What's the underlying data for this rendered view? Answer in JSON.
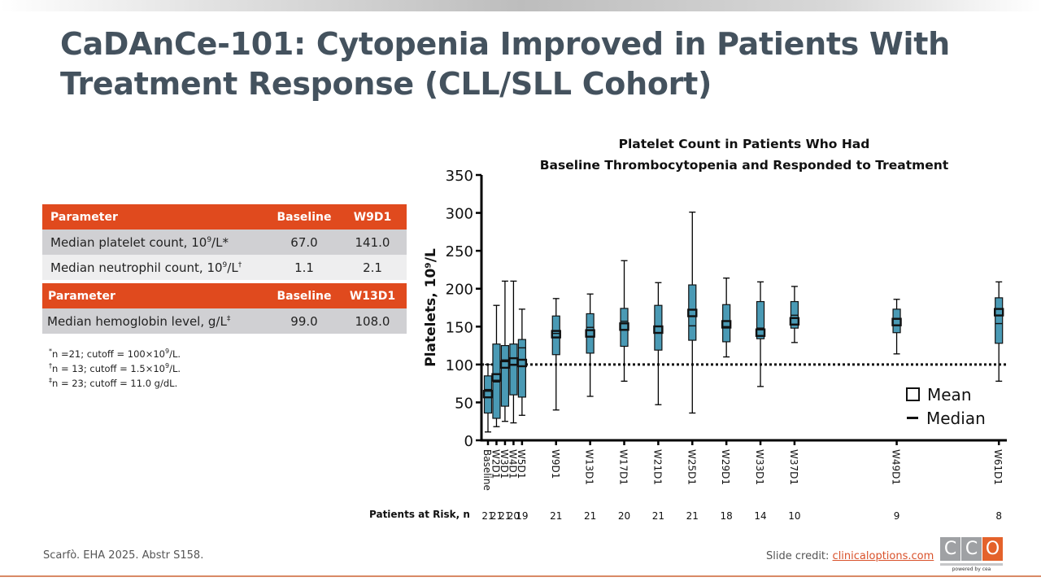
{
  "slide": {
    "title_lines": [
      "CaDAnCe-101: Cytopenia Improved in Patients With",
      "Treatment Response (CLL/SLL Cohort)"
    ],
    "source": "Scarfò. EHA 2025. Abstr S158.",
    "credit_label": "Slide credit: ",
    "credit_link": "clinicaloptions.com",
    "logo": {
      "letters": [
        "C",
        "C",
        "O"
      ],
      "tagline": "powered by cea"
    },
    "colors": {
      "title": "#44525e",
      "accent": "#e04a1e",
      "box_fill": "#4a9ab5",
      "rule": "#d98a66"
    }
  },
  "table": {
    "section1": {
      "headers": [
        "Parameter",
        "Baseline",
        "W9D1"
      ],
      "rows": [
        {
          "label": "Median platelet count, 10",
          "sup1": "9",
          "label_rest": "/L*",
          "sup2": "",
          "baseline": "67.0",
          "followup": "141.0"
        },
        {
          "label": "Median neutrophil count, 10",
          "sup1": "9",
          "label_rest": "/L",
          "sup2": "†",
          "baseline": "1.1",
          "followup": "2.1"
        }
      ]
    },
    "section2": {
      "headers": [
        "Parameter",
        "Baseline",
        "W13D1"
      ],
      "rows": [
        {
          "label": "Median hemoglobin level, g/L",
          "sup2": "‡",
          "baseline": "99.0",
          "followup": "108.0"
        }
      ]
    },
    "footnotes": [
      {
        "mark": "*",
        "text_a": "n =21; cutoff = 100×10",
        "sup": "9",
        "text_b": "/L."
      },
      {
        "mark": "†",
        "text_a": "n = 13; cutoff = 1.5×10",
        "sup": "9",
        "text_b": "/L."
      },
      {
        "mark": "‡",
        "text_a": "n = 23; cutoff = 11.0 g/dL.",
        "sup": "",
        "text_b": ""
      }
    ]
  },
  "chart_data": {
    "type": "boxplot",
    "title_lines": [
      "Platelet Count in Patients Who Had",
      "Baseline Thrombocytopenia and Responded to Treatment"
    ],
    "ylabel": "Platelets, 10⁹/L",
    "ylim": [
      0,
      350
    ],
    "yticks": [
      0,
      50,
      100,
      150,
      200,
      250,
      300,
      350
    ],
    "reference_line": 100,
    "legend": {
      "mean": "Mean",
      "median": "Median",
      "position": "bottom-right"
    },
    "risk_label": "Patients at Risk, n",
    "categories": [
      {
        "label": "Baseline",
        "week": 1,
        "min": 11,
        "q1": 36,
        "median": 67,
        "mean": 61,
        "q3": 85,
        "max": 100,
        "n": "21"
      },
      {
        "label": "W2D1",
        "week": 2,
        "min": 18,
        "q1": 29,
        "median": 77,
        "mean": 83,
        "q3": 127,
        "max": 178,
        "n": "21"
      },
      {
        "label": "W3D1",
        "week": 3,
        "min": 25,
        "q1": 45,
        "median": 106,
        "mean": 100,
        "q3": 125,
        "max": 210,
        "n": "21"
      },
      {
        "label": "W4D1",
        "week": 4,
        "min": 23,
        "q1": 60,
        "median": 99,
        "mean": 104,
        "q3": 127,
        "max": 210,
        "n": "20"
      },
      {
        "label": "W5D1",
        "week": 5,
        "min": 33,
        "q1": 57,
        "median": 122,
        "mean": 102,
        "q3": 133,
        "max": 173,
        "n": "19"
      },
      {
        "label": "W9D1",
        "week": 9,
        "min": 40,
        "q1": 113,
        "median": 141,
        "mean": 140,
        "q3": 164,
        "max": 187,
        "n": "21"
      },
      {
        "label": "W13D1",
        "week": 13,
        "min": 58,
        "q1": 115,
        "median": 149,
        "mean": 141,
        "q3": 167,
        "max": 193,
        "n": "21"
      },
      {
        "label": "W17D1",
        "week": 17,
        "min": 78,
        "q1": 124,
        "median": 157,
        "mean": 150,
        "q3": 174,
        "max": 237,
        "n": "20"
      },
      {
        "label": "W21D1",
        "week": 21,
        "min": 47,
        "q1": 119,
        "median": 142,
        "mean": 146,
        "q3": 178,
        "max": 208,
        "n": "21"
      },
      {
        "label": "W25D1",
        "week": 25,
        "min": 36,
        "q1": 132,
        "median": 151,
        "mean": 168,
        "q3": 205,
        "max": 301,
        "n": "21"
      },
      {
        "label": "W29D1",
        "week": 29,
        "min": 110,
        "q1": 130,
        "median": 150,
        "mean": 153,
        "q3": 179,
        "max": 214,
        "n": "18"
      },
      {
        "label": "W33D1",
        "week": 33,
        "min": 71,
        "q1": 134,
        "median": 148,
        "mean": 142,
        "q3": 183,
        "max": 209,
        "n": "14"
      },
      {
        "label": "W37D1",
        "week": 37,
        "min": 129,
        "q1": 148,
        "median": 165,
        "mean": 157,
        "q3": 183,
        "max": 203,
        "n": "10"
      },
      {
        "label": "W49D1",
        "week": 49,
        "min": 114,
        "q1": 142,
        "median": 160,
        "mean": 156,
        "q3": 173,
        "max": 186,
        "n": "9"
      },
      {
        "label": "W61D1",
        "week": 61,
        "min": 78,
        "q1": 128,
        "median": 154,
        "mean": 169,
        "q3": 188,
        "max": 209,
        "n": "8"
      }
    ]
  }
}
